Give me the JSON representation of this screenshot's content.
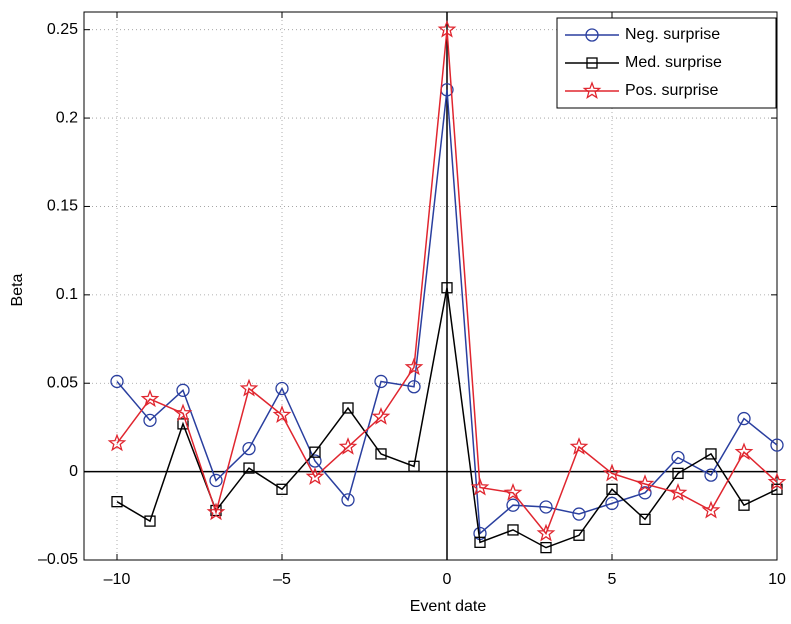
{
  "chart_data": {
    "type": "line",
    "x_label": "Event date",
    "y_label": "Beta",
    "x": [
      -10,
      -9,
      -8,
      -7,
      -6,
      -5,
      -4,
      -3,
      -2,
      -1,
      0,
      1,
      2,
      3,
      4,
      5,
      6,
      7,
      8,
      9,
      10
    ],
    "series": [
      {
        "name": "Neg. surprise",
        "color": "#2a3f9f",
        "marker": "circle",
        "values": [
          0.051,
          0.029,
          0.046,
          -0.005,
          0.013,
          0.047,
          0.006,
          -0.016,
          0.051,
          0.048,
          0.216,
          -0.035,
          -0.019,
          -0.02,
          -0.024,
          -0.018,
          -0.012,
          0.008,
          -0.002,
          0.03,
          0.015
        ]
      },
      {
        "name": "Med. surprise",
        "color": "#000000",
        "marker": "square",
        "values": [
          -0.017,
          -0.028,
          0.027,
          -0.022,
          0.002,
          -0.01,
          0.011,
          0.036,
          0.01,
          0.003,
          0.104,
          -0.04,
          -0.033,
          -0.043,
          -0.036,
          -0.01,
          -0.027,
          -0.001,
          0.01,
          -0.019,
          -0.01
        ]
      },
      {
        "name": "Pos. surprise",
        "color": "#e0262f",
        "marker": "star",
        "values": [
          0.016,
          0.041,
          0.033,
          -0.023,
          0.047,
          0.032,
          -0.003,
          0.014,
          0.031,
          0.059,
          0.25,
          -0.009,
          -0.012,
          -0.035,
          0.014,
          -0.001,
          -0.007,
          -0.012,
          -0.022,
          0.011,
          -0.006
        ]
      }
    ],
    "xlim": [
      -11,
      10
    ],
    "ylim": [
      -0.05,
      0.26
    ],
    "xticks": [
      {
        "value": -10,
        "label": "–10"
      },
      {
        "value": -5,
        "label": "–5"
      },
      0,
      5,
      10
    ],
    "yticks": [
      {
        "value": -0.05,
        "label": "–0.05"
      },
      0,
      0.05,
      0.1,
      0.15,
      0.2,
      0.25
    ],
    "grid": true,
    "zero_lines": true,
    "legend": "upper right"
  }
}
